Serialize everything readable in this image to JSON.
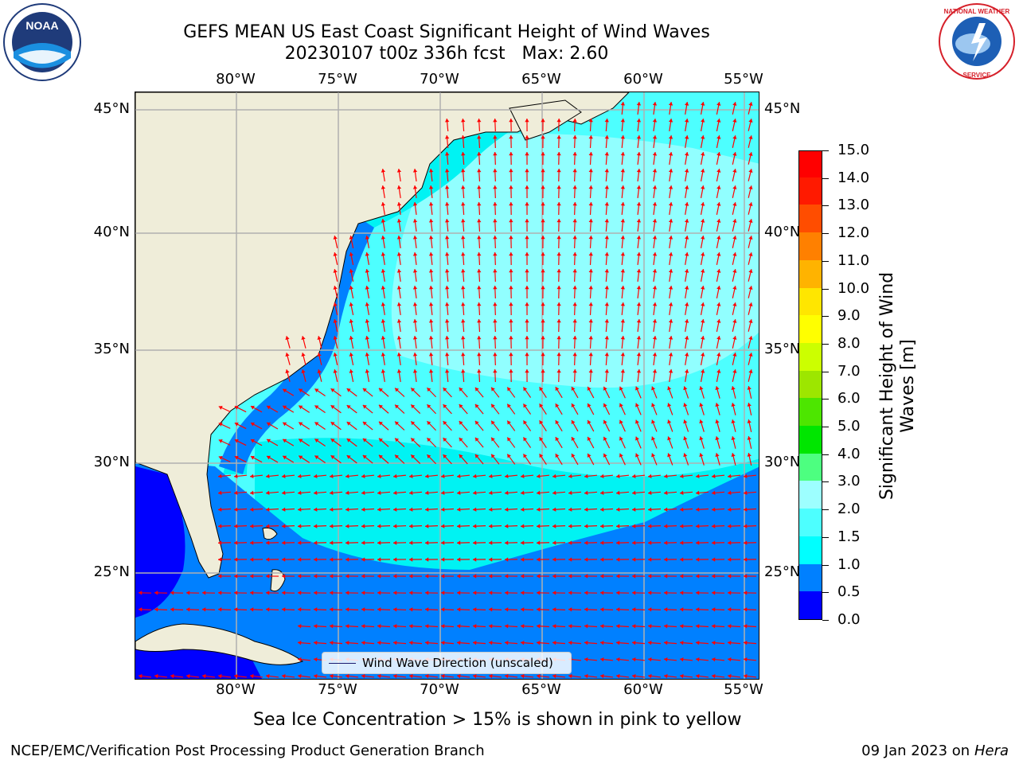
{
  "title": {
    "line1": "GEFS MEAN US East Coast Significant Height of Wind Waves",
    "line2": "20230107 t00z 336h fcst   Max: 2.60"
  },
  "map": {
    "lon_labels": [
      "80°W",
      "75°W",
      "70°W",
      "65°W",
      "60°W",
      "55°W"
    ],
    "lat_labels": [
      "45°N",
      "40°N",
      "35°N",
      "30°N",
      "25°N"
    ],
    "legend_label": "Wind Wave Direction (unscaled)",
    "colors": {
      "land": "#efedd9",
      "ocean_1_1_5": "#00f3f3",
      "arrow": "#ff0000"
    }
  },
  "colorbar": {
    "title_line1": "Significant Height of Wind",
    "title_line2": "Waves [m]",
    "ticks": [
      "0.0",
      "0.5",
      "1.0",
      "1.5",
      "2.0",
      "3.0",
      "4.0",
      "5.0",
      "6.0",
      "7.0",
      "8.0",
      "9.0",
      "10.0",
      "11.0",
      "12.0",
      "13.0",
      "14.0",
      "15.0"
    ],
    "colors": [
      "#0000ff",
      "#0080ff",
      "#00ffff",
      "#4dffff",
      "#9dffff",
      "#4dff80",
      "#00e600",
      "#4de600",
      "#9de600",
      "#ccff00",
      "#ffff00",
      "#ffe600",
      "#ffb300",
      "#ff8000",
      "#ff4d00",
      "#ff1a00",
      "#ff0000"
    ]
  },
  "caption": "Sea Ice Concentration > 15% is shown in pink to yellow",
  "footer": {
    "left": "NCEP/EMC/Verification Post Processing Product Generation Branch",
    "right_date": "09 Jan 2023 on ",
    "right_host": "Hera"
  },
  "logos": {
    "left": "NOAA",
    "right_top": "NATIONAL WEATHER",
    "right_bottom": "SERVICE"
  }
}
